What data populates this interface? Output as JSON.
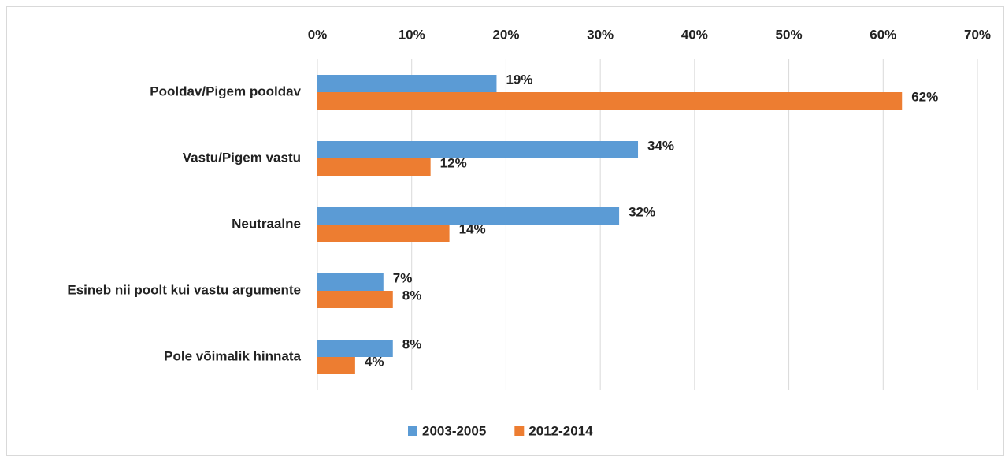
{
  "chart_data": {
    "type": "hbar",
    "categories": [
      "Pooldav/Pigem pooldav",
      "Vastu/Pigem vastu",
      "Neutraalne",
      "Esineb nii poolt kui vastu argumente",
      "Pole võimalik hinnata"
    ],
    "series": [
      {
        "name": "2003-2005",
        "color": "#5b9bd5",
        "values": [
          19,
          34,
          32,
          7,
          8
        ],
        "value_labels": [
          "19%",
          "34%",
          "32%",
          "7%",
          "8%"
        ]
      },
      {
        "name": "2012-2014",
        "color": "#ed7d31",
        "values": [
          62,
          12,
          14,
          8,
          4
        ],
        "value_labels": [
          "62%",
          "12%",
          "14%",
          "8%",
          "4%"
        ]
      }
    ],
    "xlim": [
      0,
      70
    ],
    "xticks": [
      {
        "value": 0,
        "label": "0%"
      },
      {
        "value": 10,
        "label": "10%"
      },
      {
        "value": 20,
        "label": "20%"
      },
      {
        "value": 30,
        "label": "30%"
      },
      {
        "value": 40,
        "label": "40%"
      },
      {
        "value": 50,
        "label": "50%"
      },
      {
        "value": 60,
        "label": "60%"
      },
      {
        "value": 70,
        "label": "70%"
      }
    ],
    "grid": true,
    "legend": "bottom"
  }
}
